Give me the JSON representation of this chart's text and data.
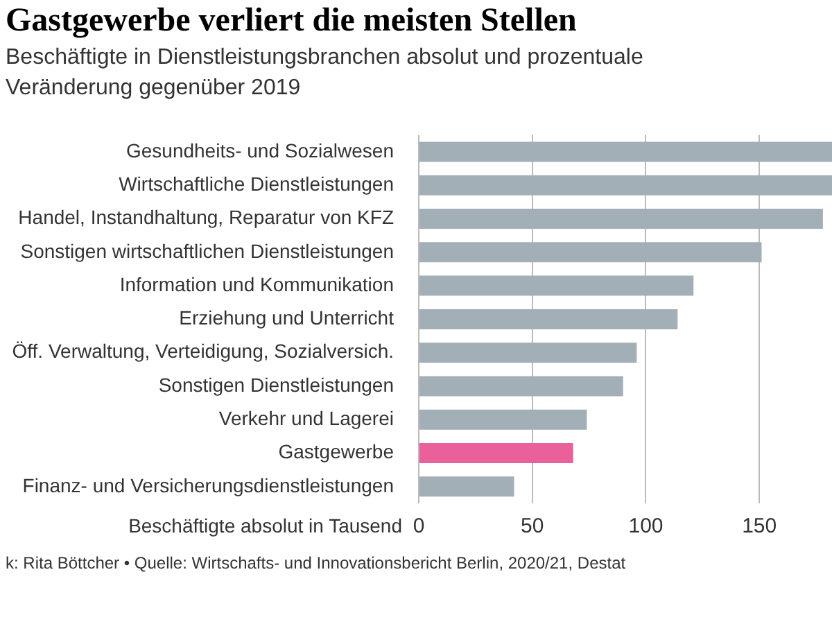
{
  "chart_data": {
    "type": "bar",
    "orientation": "horizontal",
    "title": "Gastgewerbe verliert die meisten Stellen",
    "subtitle": "Beschäftigte in Dienstleistungsbranchen absolut und prozentuale Veränderung gegenüber 2019",
    "xlabel": "Beschäftigte absolut in Tausend",
    "categories": [
      "Gesundheits- und Sozialwesen",
      "Wirtschaftliche Dienstleistungen",
      "Handel, Instandhaltung, Reparatur von KFZ",
      "Sonstigen wirtschaftlichen Dienstleistungen",
      "Information und Kommunikation",
      "Erziehung und Unterricht",
      "Öff. Verwaltung, Verteidigung, Sozialversich.",
      "Sonstigen Dienstleistungen",
      "Verkehr und Lagerei",
      "Gastgewerbe",
      "Finanz- und Versicherungsdienstleistungen"
    ],
    "values": [
      182,
      182,
      178,
      151,
      121,
      114,
      96,
      90,
      74,
      68,
      42
    ],
    "colors": [
      "#a3afb7",
      "#a3afb7",
      "#a3afb7",
      "#a3afb7",
      "#a3afb7",
      "#a3afb7",
      "#a3afb7",
      "#a3afb7",
      "#a3afb7",
      "#e9609b",
      "#a3afb7"
    ],
    "xlim": [
      0,
      182
    ],
    "xticks": [
      0,
      50,
      100,
      150
    ],
    "grid": "x",
    "legend": false,
    "annotations": [
      "k: Rita Böttcher • Quelle: Wirtschafts- und Innovationsbericht Berlin, 2020/21, Destat"
    ]
  }
}
